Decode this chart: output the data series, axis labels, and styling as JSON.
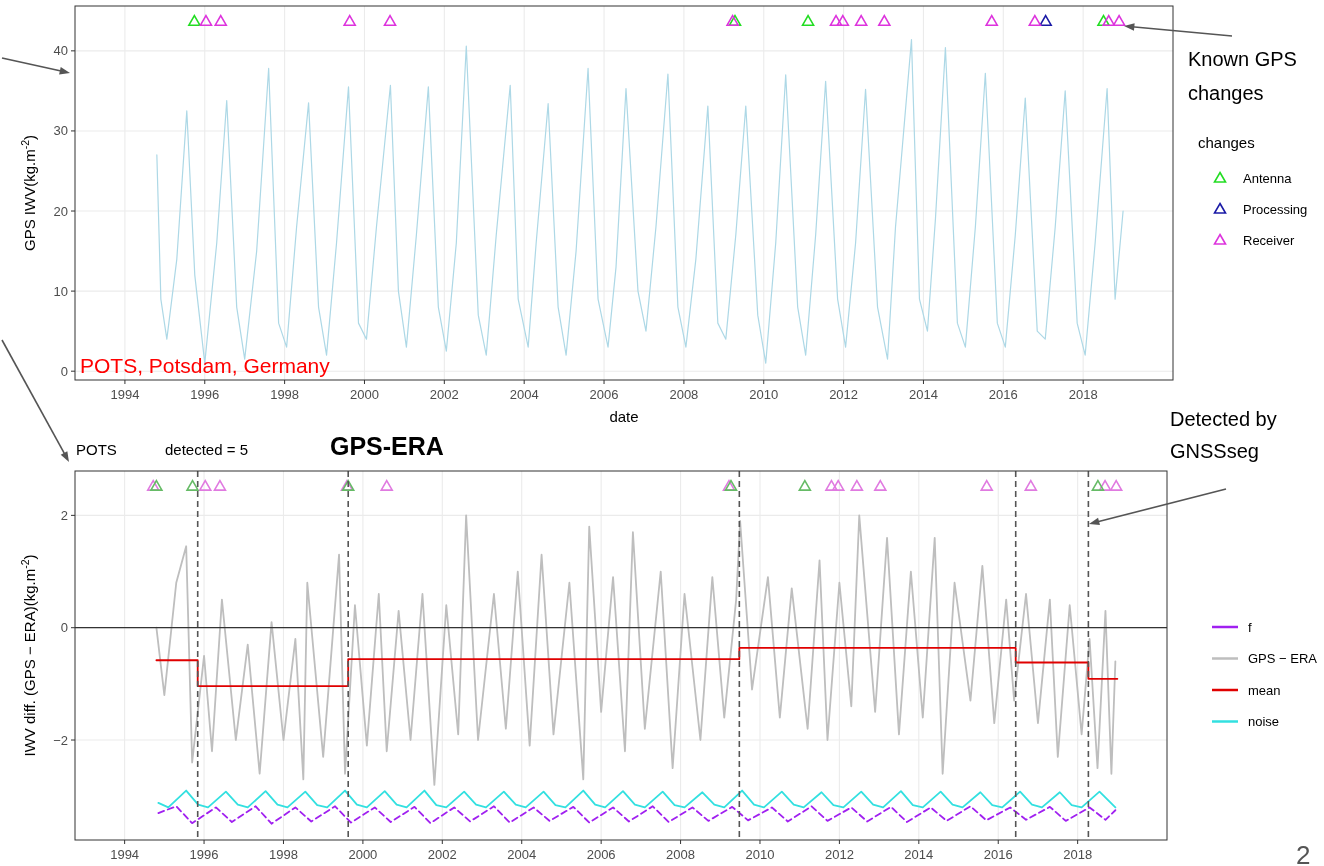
{
  "chart_data": [
    {
      "type": "line",
      "xlabel": "date",
      "ylabel": "GPS IWV(kg.m$^{-2}$)",
      "legend_title": "changes",
      "legend": "right",
      "grid": true,
      "xlim": [
        1992.75,
        2020.25
      ],
      "xticks": [
        1994,
        1996,
        1998,
        2000,
        2002,
        2004,
        2006,
        2008,
        2010,
        2012,
        2014,
        2016,
        2018
      ],
      "ylim": [
        -1.1,
        45.6
      ],
      "yticks": [
        0,
        10,
        20,
        30,
        40
      ],
      "annotations": [
        "POTS, Potsdam, Germany",
        "Known GPS changes"
      ],
      "series": [
        {
          "color": "#add8e6",
          "x": [
            1994.8,
            1994.9,
            1995.05,
            1995.3,
            1995.55,
            1995.75,
            1996.0,
            1996.3,
            1996.55,
            1996.8,
            1997.0,
            1997.3,
            1997.6,
            1997.85,
            1998.05,
            1998.3,
            1998.6,
            1998.85,
            1999.05,
            1999.3,
            1999.6,
            1999.85,
            2000.05,
            2000.3,
            2000.65,
            2000.85,
            2001.05,
            2001.3,
            2001.6,
            2001.85,
            2002.05,
            2002.3,
            2002.55,
            2002.85,
            2003.05,
            2003.3,
            2003.65,
            2003.85,
            2004.1,
            2004.3,
            2004.6,
            2004.85,
            2005.05,
            2005.3,
            2005.6,
            2005.85,
            2006.1,
            2006.3,
            2006.55,
            2006.85,
            2007.05,
            2007.3,
            2007.6,
            2007.85,
            2008.05,
            2008.3,
            2008.6,
            2008.85,
            2009.05,
            2009.3,
            2009.55,
            2009.85,
            2010.05,
            2010.3,
            2010.55,
            2010.85,
            2011.05,
            2011.3,
            2011.55,
            2011.85,
            2012.05,
            2012.3,
            2012.55,
            2012.85,
            2013.1,
            2013.3,
            2013.7,
            2013.9,
            2014.1,
            2014.3,
            2014.55,
            2014.85,
            2015.05,
            2015.3,
            2015.55,
            2015.85,
            2016.05,
            2016.3,
            2016.55,
            2016.85,
            2017.05,
            2017.3,
            2017.55,
            2017.85,
            2018.05,
            2018.3,
            2018.6,
            2018.8,
            2019.0
          ],
          "values": [
            27,
            9,
            4,
            14,
            32.5,
            12,
            1,
            16,
            33.8,
            8,
            1.5,
            15,
            37.8,
            6,
            3,
            18,
            33.5,
            8,
            2,
            16,
            35.5,
            6,
            4,
            18,
            35.7,
            10,
            3,
            17,
            35.5,
            8,
            2.5,
            16,
            40.6,
            7,
            2,
            17,
            35.7,
            9,
            3,
            16,
            33.4,
            8,
            2,
            15,
            37.8,
            9,
            3,
            13,
            35.3,
            10,
            5,
            18,
            37.1,
            8,
            3,
            14,
            33.1,
            6,
            4,
            17,
            33.1,
            7,
            1,
            16,
            37,
            8,
            2,
            17,
            36.2,
            9,
            3,
            16,
            35.2,
            8,
            1.5,
            18,
            41.4,
            9,
            5,
            19,
            40.4,
            6,
            3,
            18,
            37.2,
            6,
            3,
            17,
            34.1,
            5,
            4,
            18,
            35,
            6,
            2,
            16,
            35.3,
            9,
            20
          ]
        },
        {
          "type": "scatter",
          "name": "Antenna",
          "marker": "triangle",
          "color": "#22dd22",
          "x": [
            1995.74,
            2009.28,
            2011.11,
            2018.51
          ],
          "values": [
            43.7,
            43.7,
            43.7,
            43.7
          ]
        },
        {
          "type": "scatter",
          "name": "Processing",
          "marker": "triangle",
          "color": "#1a1aa6",
          "x": [
            2017.06
          ],
          "values": [
            43.7
          ]
        },
        {
          "type": "scatter",
          "name": "Receiver",
          "marker": "triangle",
          "color": "#dd33dd",
          "x": [
            1996.03,
            1996.4,
            1999.63,
            2000.64,
            2009.22,
            2011.81,
            2011.98,
            2012.44,
            2013.02,
            2015.71,
            2016.79,
            2018.64,
            2018.9
          ],
          "values": [
            43.7,
            43.7,
            43.7,
            43.7,
            43.7,
            43.7,
            43.7,
            43.7,
            43.7,
            43.7,
            43.7,
            43.7,
            43.7
          ]
        }
      ]
    },
    {
      "type": "line",
      "title": "POTS",
      "subtitle": "detected = 5",
      "ylabel": "IWV diff. (GPS − ERA)(kg.m$^{-2}$)",
      "legend": "right",
      "grid": true,
      "xlim": [
        1992.75,
        2020.25
      ],
      "xticks": [
        1994,
        1996,
        1998,
        2000,
        2002,
        2004,
        2006,
        2008,
        2010,
        2012,
        2014,
        2016,
        2018
      ],
      "ylim": [
        -3.78,
        2.79
      ],
      "yticks": [
        {
          "value": -2,
          "label": "−2"
        },
        0,
        2
      ],
      "annotations": [
        "GPS-ERA",
        "Detected by GNSSseg",
        "2"
      ],
      "ref_lines": [
        {
          "axis": "y",
          "value": 0,
          "color": "#333333",
          "line_style": "solid"
        },
        {
          "axis": "x",
          "value": 1995.84,
          "color": "#555555",
          "line_style": "dashed"
        },
        {
          "axis": "x",
          "value": 1999.63,
          "color": "#555555",
          "line_style": "dashed"
        },
        {
          "axis": "x",
          "value": 2009.48,
          "color": "#555555",
          "line_style": "dashed"
        },
        {
          "axis": "x",
          "value": 2016.44,
          "color": "#555555",
          "line_style": "dashed"
        },
        {
          "axis": "x",
          "value": 2018.27,
          "color": "#555555",
          "line_style": "dashed"
        }
      ],
      "series": [
        {
          "name": "f",
          "color": "#a020f0",
          "line_style": "dashed",
          "x": [
            1994.85,
            1995.3,
            1995.7,
            1996.3,
            1996.7,
            1997.3,
            1997.7,
            1998.3,
            1998.7,
            1999.3,
            1999.7,
            2000.3,
            2000.7,
            2001.3,
            2001.7,
            2002.3,
            2002.7,
            2003.3,
            2003.7,
            2004.3,
            2004.7,
            2005.3,
            2005.7,
            2006.3,
            2006.7,
            2007.3,
            2007.7,
            2008.3,
            2008.7,
            2009.3,
            2009.7,
            2010.3,
            2010.7,
            2011.3,
            2011.7,
            2012.3,
            2012.7,
            2013.3,
            2013.7,
            2014.3,
            2014.7,
            2015.3,
            2015.7,
            2016.3,
            2016.7,
            2017.3,
            2017.7,
            2018.3,
            2018.7,
            2018.95
          ],
          "values": [
            -3.3,
            -3.18,
            -3.48,
            -3.2,
            -3.46,
            -3.18,
            -3.49,
            -3.2,
            -3.45,
            -3.18,
            -3.47,
            -3.2,
            -3.46,
            -3.19,
            -3.48,
            -3.2,
            -3.45,
            -3.18,
            -3.47,
            -3.2,
            -3.44,
            -3.19,
            -3.47,
            -3.2,
            -3.45,
            -3.18,
            -3.46,
            -3.2,
            -3.44,
            -3.19,
            -3.43,
            -3.2,
            -3.45,
            -3.18,
            -3.44,
            -3.2,
            -3.45,
            -3.19,
            -3.46,
            -3.2,
            -3.44,
            -3.18,
            -3.43,
            -3.2,
            -3.42,
            -3.19,
            -3.44,
            -3.2,
            -3.42,
            -3.25
          ]
        },
        {
          "name": "GPS − ERA",
          "color": "#bebebe",
          "x": [
            1994.8,
            1995.0,
            1995.3,
            1995.55,
            1995.7,
            1996.0,
            1996.2,
            1996.45,
            1996.8,
            1997.1,
            1997.4,
            1997.7,
            1998.0,
            1998.3,
            1998.5,
            1998.6,
            1999.0,
            1999.4,
            1999.55,
            1999.8,
            2000.1,
            2000.4,
            2000.6,
            2000.9,
            2001.2,
            2001.5,
            2001.8,
            2002.1,
            2002.4,
            2002.6,
            2002.9,
            2003.3,
            2003.6,
            2003.9,
            2004.2,
            2004.5,
            2004.8,
            2005.2,
            2005.55,
            2005.7,
            2006.0,
            2006.3,
            2006.6,
            2006.8,
            2007.1,
            2007.5,
            2007.8,
            2008.1,
            2008.5,
            2008.8,
            2009.1,
            2009.4,
            2009.5,
            2009.8,
            2010.2,
            2010.5,
            2010.8,
            2011.2,
            2011.5,
            2011.7,
            2012.0,
            2012.3,
            2012.5,
            2012.9,
            2013.2,
            2013.5,
            2013.8,
            2014.1,
            2014.4,
            2014.6,
            2014.9,
            2015.3,
            2015.6,
            2015.9,
            2016.2,
            2016.4,
            2016.7,
            2017.0,
            2017.3,
            2017.5,
            2017.8,
            2018.1,
            2018.3,
            2018.5,
            2018.7,
            2018.85,
            2018.95
          ],
          "values": [
            0,
            -1.2,
            0.8,
            1.45,
            -2.4,
            -0.5,
            -2.2,
            0.5,
            -2,
            -0.3,
            -2.6,
            0.1,
            -2,
            -0.2,
            -2.7,
            0.8,
            -2.3,
            1.3,
            -2.6,
            0.4,
            -2.1,
            0.6,
            -2.2,
            0.3,
            -2,
            0.6,
            -2.8,
            0.4,
            -1.9,
            2,
            -2,
            0.6,
            -1.8,
            1,
            -2.1,
            1.3,
            -1.9,
            0.8,
            -2.7,
            1.8,
            -1.5,
            0.9,
            -2.2,
            1.7,
            -1.8,
            1,
            -2.5,
            0.6,
            -2,
            0.9,
            -1.6,
            0.5,
            1.9,
            -1.1,
            0.9,
            -1.6,
            0.7,
            -1.8,
            1.2,
            -2,
            0.8,
            -1.4,
            2,
            -1.5,
            1.6,
            -1.9,
            1,
            -1.6,
            1.6,
            -2.6,
            0.8,
            -1.3,
            1.1,
            -1.7,
            0.5,
            -1.3,
            0.6,
            -1.7,
            0.5,
            -2.3,
            0.4,
            -1.9,
            -0.2,
            -2.5,
            0.3,
            -2.6,
            -0.6
          ]
        },
        {
          "name": "mean",
          "color": "#e00000",
          "x": [
            1994.8,
            1995.84,
            1995.84,
            1999.63,
            1999.63,
            2009.48,
            2009.48,
            2016.44,
            2016.44,
            2018.27,
            2018.27,
            2019.0
          ],
          "values": [
            -0.58,
            -0.58,
            -1.04,
            -1.04,
            -0.56,
            -0.56,
            -0.36,
            -0.36,
            -0.62,
            -0.62,
            -0.91,
            -0.91
          ]
        },
        {
          "name": "noise",
          "color": "#33e0e0",
          "x": [
            1994.85,
            1995.1,
            1995.55,
            1995.85,
            1996.1,
            1996.55,
            1996.85,
            1997.1,
            1997.55,
            1997.85,
            1998.1,
            1998.55,
            1998.85,
            1999.1,
            1999.55,
            1999.85,
            2000.1,
            2000.55,
            2000.85,
            2001.1,
            2001.55,
            2001.85,
            2002.1,
            2002.55,
            2002.85,
            2003.1,
            2003.55,
            2003.85,
            2004.1,
            2004.55,
            2004.85,
            2005.1,
            2005.55,
            2005.85,
            2006.1,
            2006.55,
            2006.85,
            2007.1,
            2007.55,
            2007.85,
            2008.1,
            2008.55,
            2008.85,
            2009.1,
            2009.55,
            2009.85,
            2010.1,
            2010.55,
            2010.85,
            2011.1,
            2011.55,
            2011.85,
            2012.1,
            2012.55,
            2012.85,
            2013.1,
            2013.55,
            2013.85,
            2014.1,
            2014.55,
            2014.85,
            2015.1,
            2015.55,
            2015.85,
            2016.1,
            2016.55,
            2016.85,
            2017.1,
            2017.55,
            2017.85,
            2018.1,
            2018.55,
            2018.95
          ],
          "values": [
            -3.12,
            -3.2,
            -2.9,
            -3.15,
            -3.2,
            -2.92,
            -3.15,
            -3.2,
            -2.91,
            -3.15,
            -3.2,
            -2.92,
            -3.16,
            -3.2,
            -2.9,
            -3.15,
            -3.2,
            -2.91,
            -3.15,
            -3.2,
            -2.9,
            -3.16,
            -3.2,
            -2.92,
            -3.15,
            -3.2,
            -2.92,
            -3.15,
            -3.2,
            -2.92,
            -3.16,
            -3.2,
            -2.9,
            -3.15,
            -3.2,
            -2.91,
            -3.15,
            -3.2,
            -2.92,
            -3.16,
            -3.2,
            -2.93,
            -3.15,
            -3.2,
            -2.9,
            -3.15,
            -3.2,
            -2.92,
            -3.15,
            -3.2,
            -2.93,
            -3.16,
            -3.2,
            -2.92,
            -3.15,
            -3.2,
            -2.91,
            -3.16,
            -3.2,
            -2.92,
            -3.15,
            -3.2,
            -2.93,
            -3.16,
            -3.2,
            -2.92,
            -3.15,
            -3.2,
            -2.93,
            -3.16,
            -3.2,
            -2.92,
            -3.2
          ]
        },
        {
          "type": "scatter",
          "marker": "triangle",
          "color": "#e07ae0",
          "x": [
            1994.72,
            1996.03,
            1996.4,
            1999.6,
            2000.6,
            2009.22,
            2011.8,
            2011.97,
            2012.44,
            2013.03,
            2015.71,
            2016.82,
            2018.69,
            2018.97
          ],
          "values": [
            2.52,
            2.52,
            2.52,
            2.52,
            2.52,
            2.52,
            2.52,
            2.52,
            2.52,
            2.52,
            2.52,
            2.52,
            2.52,
            2.52
          ]
        },
        {
          "type": "scatter",
          "marker": "triangle",
          "color": "#66bb66",
          "x": [
            1994.8,
            1995.71,
            1999.63,
            2009.27,
            2011.13,
            2018.51
          ],
          "values": [
            2.52,
            2.52,
            2.52,
            2.52,
            2.52,
            2.52
          ]
        }
      ]
    }
  ]
}
